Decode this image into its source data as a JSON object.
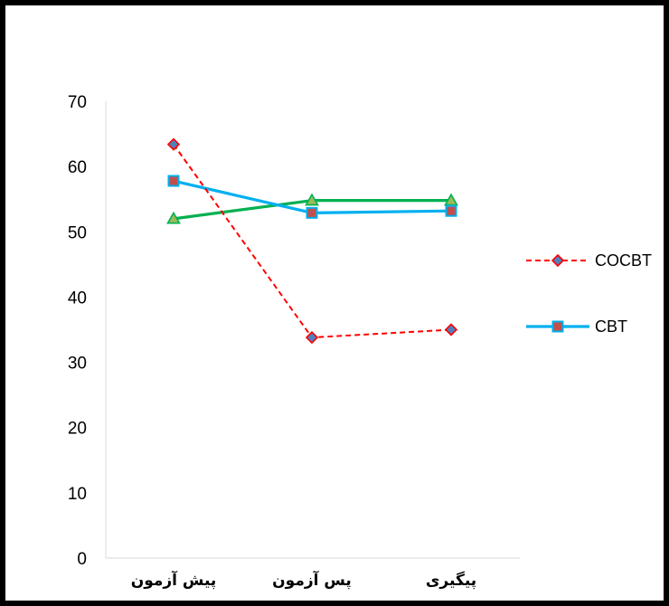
{
  "chart_data": {
    "type": "line",
    "categories": [
      "پیش آزمون",
      "پس آزمون",
      "پیگیری"
    ],
    "ylim": [
      0,
      70
    ],
    "yticks": [
      "0",
      "10",
      "20",
      "30",
      "40",
      "50",
      "60",
      "70"
    ],
    "grid": false,
    "legend_position": "right",
    "series": [
      {
        "name": "COCBT",
        "values": [
          63.4,
          33.8,
          35.0
        ],
        "line_color": "#ff0000",
        "line_style": "dashed",
        "marker": "diamond",
        "marker_fill": "#4f81bd",
        "marker_edge": "#ff0000"
      },
      {
        "name": "CBT",
        "values": [
          57.8,
          52.9,
          53.2
        ],
        "line_color": "#00b0f0",
        "line_style": "solid",
        "marker": "square",
        "marker_fill": "#c0504d",
        "marker_edge": "#00b0f0"
      },
      {
        "name": "",
        "values": [
          52.0,
          54.8,
          54.8
        ],
        "line_color": "#00b050",
        "line_style": "solid",
        "marker": "triangle",
        "marker_fill": "#9bbb59",
        "marker_edge": "#00b050"
      }
    ]
  }
}
